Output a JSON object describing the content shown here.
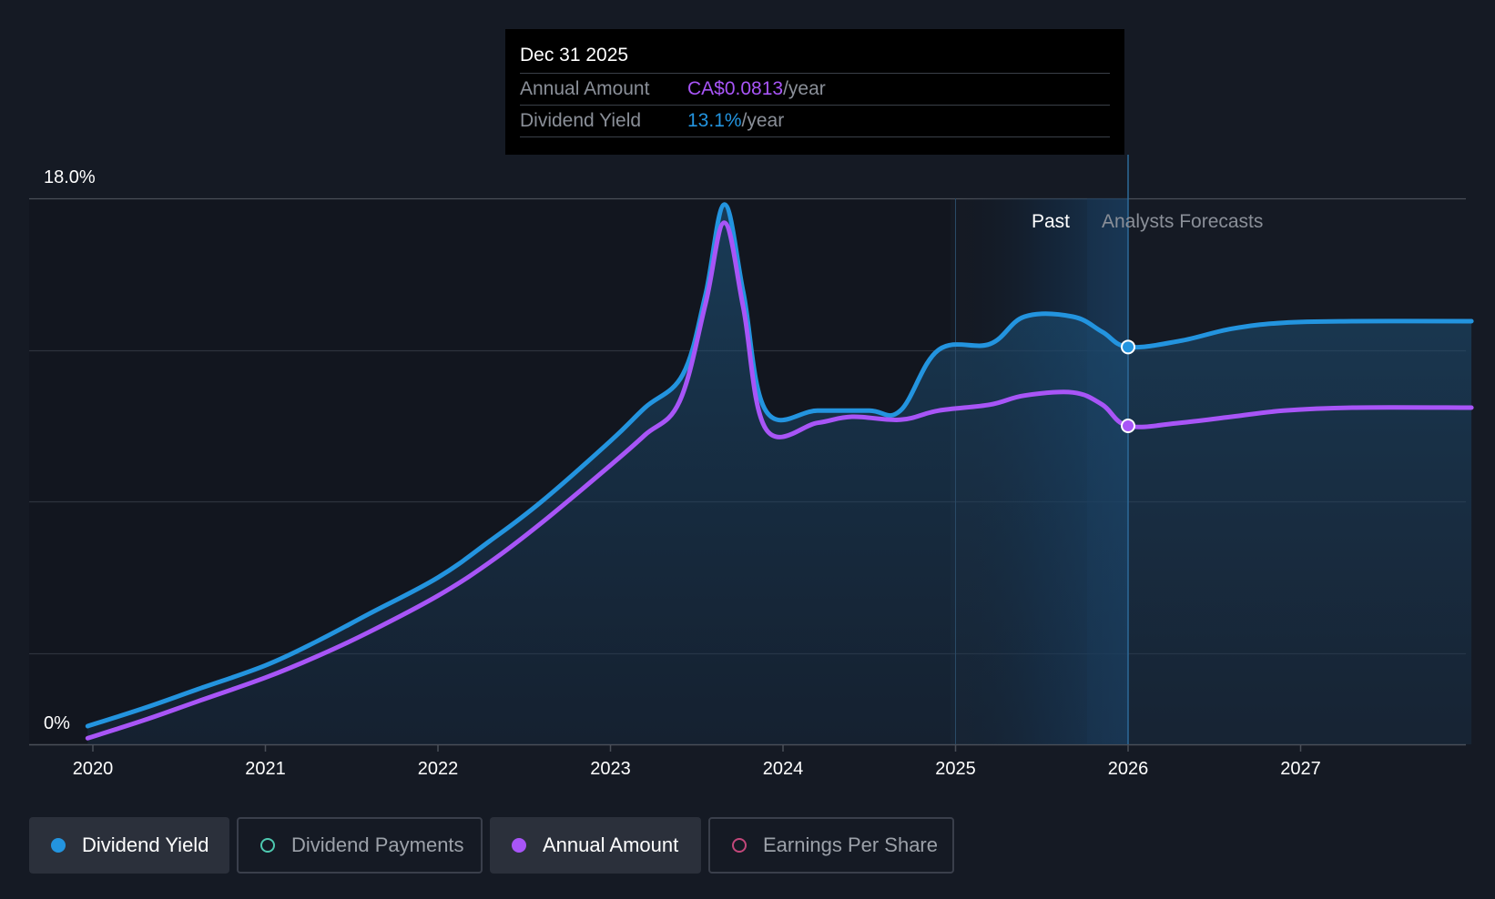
{
  "tooltip": {
    "date": "Dec 31 2025",
    "annual_label": "Annual Amount",
    "annual_value": "CA$0.0813",
    "annual_unit": "/year",
    "yield_label": "Dividend Yield",
    "yield_value": "13.1%",
    "yield_unit": "/year"
  },
  "colors": {
    "yield": "#2394df",
    "annual": "#a855f7",
    "payments": "#4ec9b0",
    "eps": "#c2477a",
    "background": "#151a24"
  },
  "legend": [
    {
      "label": "Dividend Yield",
      "icon": "filled-dot-icon",
      "active": true
    },
    {
      "label": "Dividend Payments",
      "icon": "hollow-dot-icon",
      "active": false
    },
    {
      "label": "Annual Amount",
      "icon": "filled-dot-icon",
      "active": true
    },
    {
      "label": "Earnings Per Share",
      "icon": "hollow-dot-icon",
      "active": false
    }
  ],
  "chart_data": {
    "type": "line",
    "title": "",
    "xlabel": "",
    "ylabel": "",
    "x_ticks": [
      "2020",
      "2021",
      "2022",
      "2023",
      "2024",
      "2025",
      "2026",
      "2027"
    ],
    "y_tick_labels": [
      "18.0%",
      "0%"
    ],
    "ylim": [
      0,
      18
    ],
    "xlim": [
      2019.63,
      2027.99
    ],
    "past_label": "Past",
    "forecast_label": "Analysts Forecasts",
    "past_region_start": 2025.0,
    "forecast_start": 2026.0,
    "series": [
      {
        "name": "Dividend Yield",
        "color": "#2394df",
        "x": [
          2019.97,
          2020.3,
          2020.6,
          2021.0,
          2021.3,
          2021.6,
          2022.0,
          2022.3,
          2022.6,
          2023.0,
          2023.2,
          2023.42,
          2023.55,
          2023.66,
          2023.77,
          2023.9,
          2024.2,
          2024.5,
          2024.68,
          2024.9,
          2025.2,
          2025.4,
          2025.68,
          2025.85,
          2026.0,
          2026.3,
          2026.6,
          2026.9,
          2027.3,
          2027.99
        ],
        "y": [
          0.6,
          1.2,
          1.8,
          2.6,
          3.4,
          4.3,
          5.5,
          6.7,
          8.0,
          10.0,
          11.1,
          12.2,
          14.8,
          17.8,
          14.9,
          11.0,
          11.0,
          11.0,
          11.0,
          13.0,
          13.2,
          14.1,
          14.1,
          13.6,
          13.1,
          13.3,
          13.7,
          13.9,
          13.95,
          13.95
        ]
      },
      {
        "name": "Annual Amount",
        "color": "#a855f7",
        "x": [
          2019.97,
          2020.3,
          2020.6,
          2021.0,
          2021.3,
          2021.6,
          2022.0,
          2022.3,
          2022.6,
          2023.0,
          2023.2,
          2023.4,
          2023.55,
          2023.66,
          2023.77,
          2023.9,
          2024.2,
          2024.4,
          2024.68,
          2024.9,
          2025.2,
          2025.4,
          2025.68,
          2025.85,
          2026.0,
          2026.3,
          2026.6,
          2026.9,
          2027.3,
          2027.99
        ],
        "y": [
          0.2,
          0.8,
          1.4,
          2.2,
          2.9,
          3.7,
          4.9,
          6.0,
          7.3,
          9.2,
          10.2,
          11.3,
          14.5,
          17.2,
          14.4,
          10.4,
          10.6,
          10.8,
          10.7,
          11.0,
          11.2,
          11.5,
          11.6,
          11.2,
          10.5,
          10.6,
          10.8,
          11.0,
          11.1,
          11.1
        ]
      }
    ],
    "highlight_points": [
      {
        "series": "Dividend Yield",
        "x": 2026.0,
        "y": 13.1
      },
      {
        "series": "Annual Amount",
        "x": 2026.0,
        "y": 10.5
      }
    ]
  }
}
